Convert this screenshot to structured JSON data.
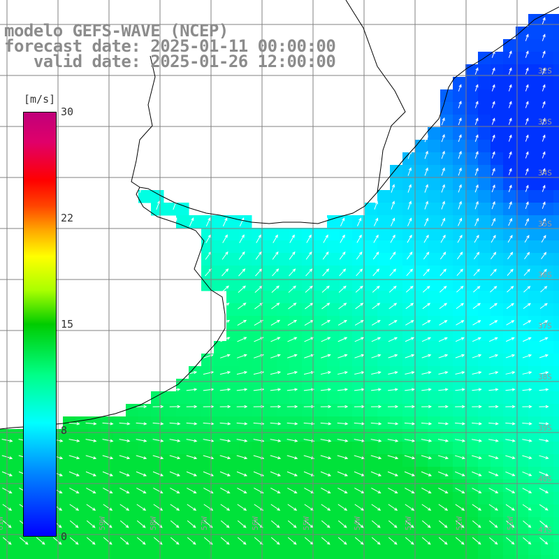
{
  "title": {
    "line1": "modelo GEFS-WAVE (NCEP)",
    "line2": "forecast date: 2025-01-11 00:00:00",
    "line3": "   valid date: 2025-01-26 12:00:00"
  },
  "colorbar": {
    "unit": "[m/s]",
    "ticks": [
      "30",
      "22",
      "15",
      "8",
      "0"
    ],
    "tick_values": [
      30,
      22,
      15,
      8,
      0
    ],
    "colors": [
      "#0000ff",
      "#0088ff",
      "#00ffff",
      "#00ff88",
      "#00cc00",
      "#aaff00",
      "#ffff00",
      "#ffaa00",
      "#ff0000",
      "#c0007a"
    ]
  },
  "longitude_labels": [
    "61W",
    "60W",
    "59W",
    "58W",
    "57W",
    "56W",
    "55W",
    "54W",
    "53W",
    "52W",
    "51W"
  ],
  "latitude_labels": [
    "32S",
    "33S",
    "34S",
    "35S",
    "36S",
    "37S",
    "38S",
    "39S",
    "40S",
    "41S"
  ],
  "colors": {
    "land": "#ffffff",
    "grid": "#808080",
    "coast": "#000000",
    "arrow": "#ffffff",
    "title_text": "#8c8c8c"
  }
}
